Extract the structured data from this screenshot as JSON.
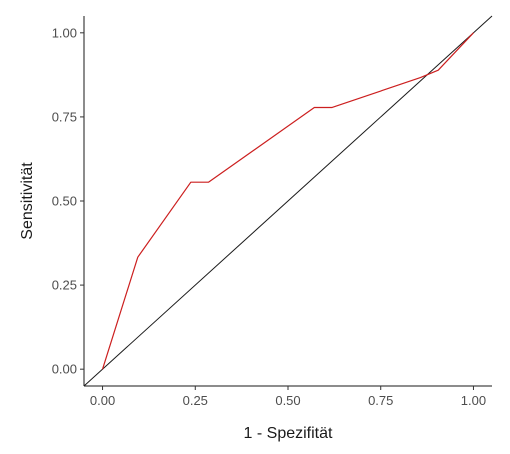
{
  "chart_data": {
    "type": "line",
    "title": "",
    "xlabel": "1 - Spezifität",
    "ylabel": "Sensitivität",
    "xlim": [
      -0.05,
      1.05
    ],
    "ylim": [
      -0.05,
      1.05
    ],
    "x_ticks": [
      0.0,
      0.25,
      0.5,
      0.75,
      1.0
    ],
    "x_tick_labels": [
      "0.00",
      "0.25",
      "0.50",
      "0.75",
      "1.00"
    ],
    "y_ticks": [
      0.0,
      0.25,
      0.5,
      0.75,
      1.0
    ],
    "y_tick_labels": [
      "0.00",
      "0.25",
      "0.50",
      "0.75",
      "1.00"
    ],
    "grid": false,
    "series": [
      {
        "color": "#cc1f1f",
        "x": [
          0.0,
          0.095,
          0.238,
          0.286,
          0.571,
          0.619,
          0.857,
          0.905,
          1.0
        ],
        "y": [
          0.0,
          0.333,
          0.556,
          0.556,
          0.778,
          0.778,
          0.867,
          0.889,
          1.0
        ]
      }
    ],
    "reference_line": {
      "color": "#1a1a1a",
      "x": [
        -0.05,
        1.05
      ],
      "y": [
        -0.05,
        1.05
      ]
    }
  }
}
